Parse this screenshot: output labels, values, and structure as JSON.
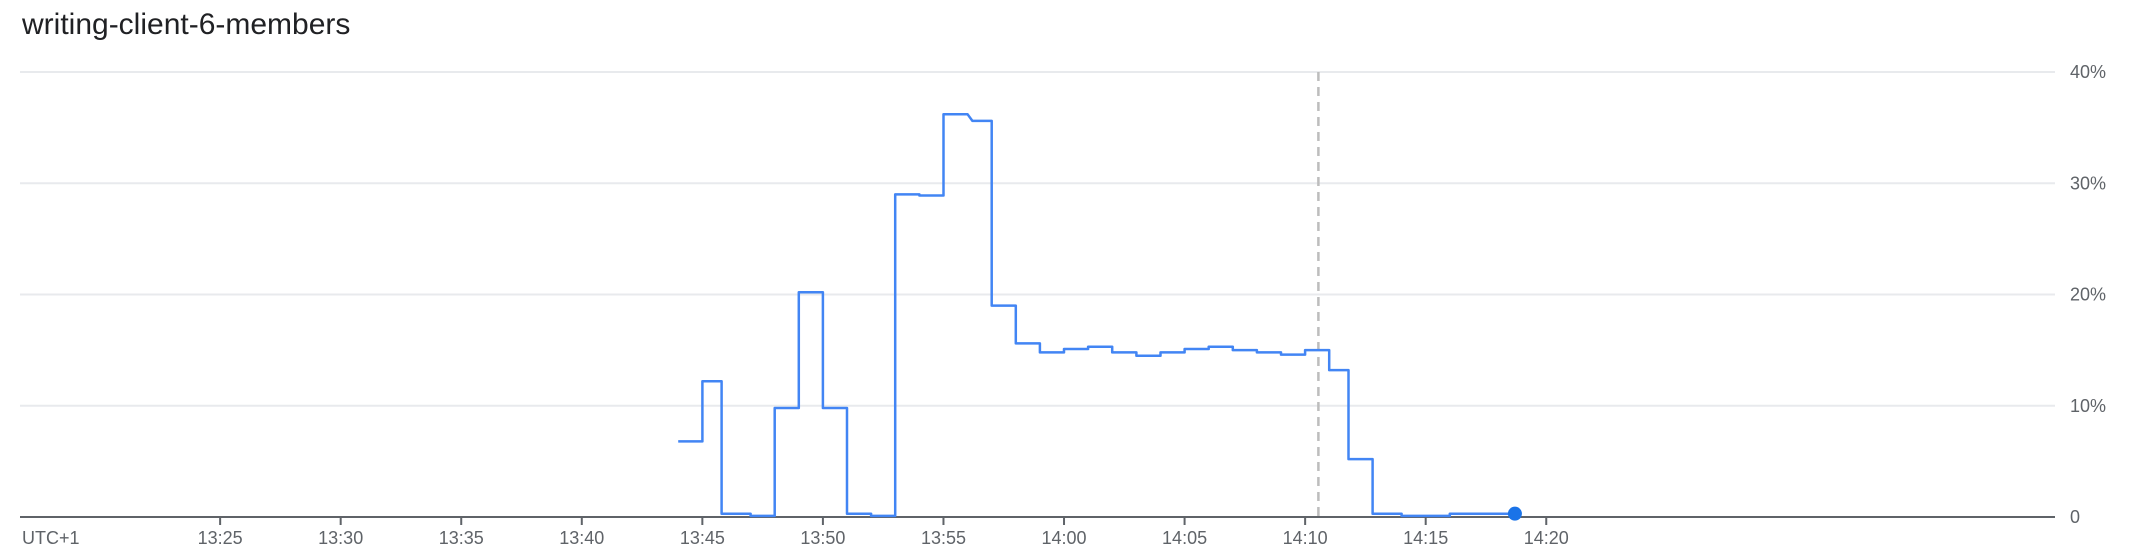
{
  "chart_data": {
    "type": "line",
    "title": "writing-client-6-members",
    "timezone_label": "UTC+1",
    "x_ticks": [
      "13:25",
      "13:30",
      "13:35",
      "13:40",
      "13:45",
      "13:50",
      "13:55",
      "14:00",
      "14:05",
      "14:10",
      "14:15",
      "14:20"
    ],
    "y_ticks": [
      "0",
      "10%",
      "20%",
      "30%",
      "40%"
    ],
    "xlim_minutes": [
      -3.3,
      81.1
    ],
    "ylim": [
      0,
      40
    ],
    "x_unit": "minutes after 13:20",
    "y_unit": "percent",
    "grid": true,
    "cursor_x": 50.55,
    "line_color": "#4285f4",
    "cursor_color": "#bdbdbd",
    "end_marker_color": "#1a73e8",
    "series": [
      {
        "name": "writing-client-6-members",
        "step": true,
        "points": [
          [
            24.0,
            6.8
          ],
          [
            25.0,
            6.8
          ],
          [
            25.0,
            12.2
          ],
          [
            25.8,
            12.2
          ],
          [
            25.8,
            0.3
          ],
          [
            27.0,
            0.3
          ],
          [
            27.0,
            0.1
          ],
          [
            28.0,
            0.1
          ],
          [
            28.0,
            9.8
          ],
          [
            29.0,
            9.8
          ],
          [
            29.0,
            20.2
          ],
          [
            30.0,
            20.2
          ],
          [
            30.0,
            9.8
          ],
          [
            31.0,
            9.8
          ],
          [
            31.0,
            0.3
          ],
          [
            32.0,
            0.3
          ],
          [
            32.0,
            0.1
          ],
          [
            33.0,
            0.1
          ],
          [
            33.0,
            29.0
          ],
          [
            34.0,
            29.0
          ],
          [
            34.0,
            28.9
          ],
          [
            35.0,
            28.9
          ],
          [
            35.0,
            36.2
          ],
          [
            36.0,
            36.2
          ],
          [
            36.2,
            35.6
          ],
          [
            37.0,
            35.6
          ],
          [
            37.0,
            19.0
          ],
          [
            38.0,
            19.0
          ],
          [
            38.0,
            15.6
          ],
          [
            39.0,
            15.6
          ],
          [
            39.0,
            14.8
          ],
          [
            40.0,
            14.8
          ],
          [
            40.0,
            15.1
          ],
          [
            41.0,
            15.1
          ],
          [
            41.0,
            15.3
          ],
          [
            42.0,
            15.3
          ],
          [
            42.0,
            14.8
          ],
          [
            43.0,
            14.8
          ],
          [
            43.0,
            14.5
          ],
          [
            44.0,
            14.5
          ],
          [
            44.0,
            14.8
          ],
          [
            45.0,
            14.8
          ],
          [
            45.0,
            15.1
          ],
          [
            46.0,
            15.1
          ],
          [
            46.0,
            15.3
          ],
          [
            47.0,
            15.3
          ],
          [
            47.0,
            15.0
          ],
          [
            48.0,
            15.0
          ],
          [
            48.0,
            14.8
          ],
          [
            49.0,
            14.8
          ],
          [
            49.0,
            14.6
          ],
          [
            50.0,
            14.6
          ],
          [
            50.0,
            15.0
          ],
          [
            51.0,
            15.0
          ],
          [
            51.0,
            13.2
          ],
          [
            51.8,
            13.2
          ],
          [
            51.8,
            5.2
          ],
          [
            52.8,
            5.2
          ],
          [
            52.8,
            0.3
          ],
          [
            54.0,
            0.3
          ],
          [
            54.0,
            0.1
          ],
          [
            56.0,
            0.1
          ],
          [
            56.0,
            0.3
          ],
          [
            58.7,
            0.3
          ]
        ],
        "end_point": [
          58.7,
          0.3
        ]
      }
    ]
  }
}
